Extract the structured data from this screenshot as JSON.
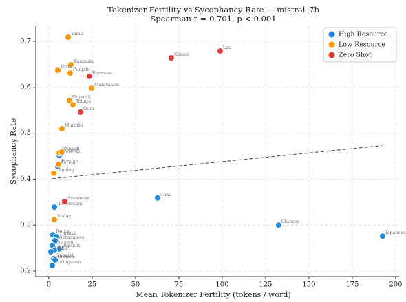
{
  "chart_data": {
    "type": "scatter",
    "title": "Tokenizer Fertility vs Sycophancy Rate — mistral_7b",
    "subtitle": "Spearman r = 0.701,  p < 0.001",
    "x_label": "Mean Tokenizer Fertility  (tokens / word)",
    "y_label": "Sycophancy Rate",
    "xlim": [
      -7.5,
      202
    ],
    "ylim": [
      0.188,
      0.733
    ],
    "xticks": [
      0,
      25,
      50,
      75,
      100,
      125,
      150,
      175,
      200
    ],
    "yticks": [
      0.2,
      0.3,
      0.4,
      0.5,
      0.6,
      0.7
    ],
    "grid": true,
    "legend": "upper right",
    "series": [
      {
        "name": "High Resource",
        "color": "#1e88e5",
        "names": [
          "Thai",
          "Chinese",
          "Japanese",
          "Indonesian",
          "Dutch",
          "Turkish",
          "Vietnamese",
          "German",
          "Russian",
          "Polish",
          "Arabic",
          "Spanish",
          "French",
          "Portuguese",
          "Korean",
          "Hebrew"
        ],
        "x": [
          62.7,
          132.5,
          192.5,
          3.2,
          2.4,
          4.4,
          3.6,
          2.0,
          6.0,
          3.2,
          1.2,
          2.8,
          3.6,
          2.0,
          5.2,
          6.0
        ],
        "values": [
          0.359,
          0.3,
          0.276,
          0.339,
          0.279,
          0.275,
          0.266,
          0.256,
          0.248,
          0.245,
          0.242,
          0.227,
          0.224,
          0.212,
          0.428,
          0.452
        ]
      },
      {
        "name": "Low Resource",
        "color": "#ff9800",
        "names": [
          "Tamil",
          "Kannada",
          "Urdu",
          "Punjabi",
          "Malayalam",
          "Gujarati",
          "Telugu",
          "Marathi",
          "Bengali",
          "Nepali",
          "Persian",
          "Tagalog",
          "Malay"
        ],
        "x": [
          11.1,
          12.7,
          5.2,
          12.3,
          24.6,
          11.9,
          13.9,
          7.5,
          6.0,
          7.5,
          5.6,
          2.8,
          3.2
        ],
        "values": [
          0.709,
          0.649,
          0.637,
          0.631,
          0.598,
          0.571,
          0.562,
          0.51,
          0.457,
          0.459,
          0.432,
          0.413,
          0.312
        ]
      },
      {
        "name": "Zero Shot",
        "color": "#e53935",
        "names": [
          "Lao",
          "Khmer",
          "Burmese",
          "Odia",
          "Assamese"
        ],
        "x": [
          98.8,
          70.6,
          23.4,
          18.3,
          9.1
        ],
        "values": [
          0.679,
          0.664,
          0.624,
          0.546,
          0.351
        ]
      }
    ],
    "trend_line": {
      "color": "#555555",
      "x": [
        2.0,
        192.0
      ],
      "y": [
        0.401,
        0.473
      ]
    }
  }
}
